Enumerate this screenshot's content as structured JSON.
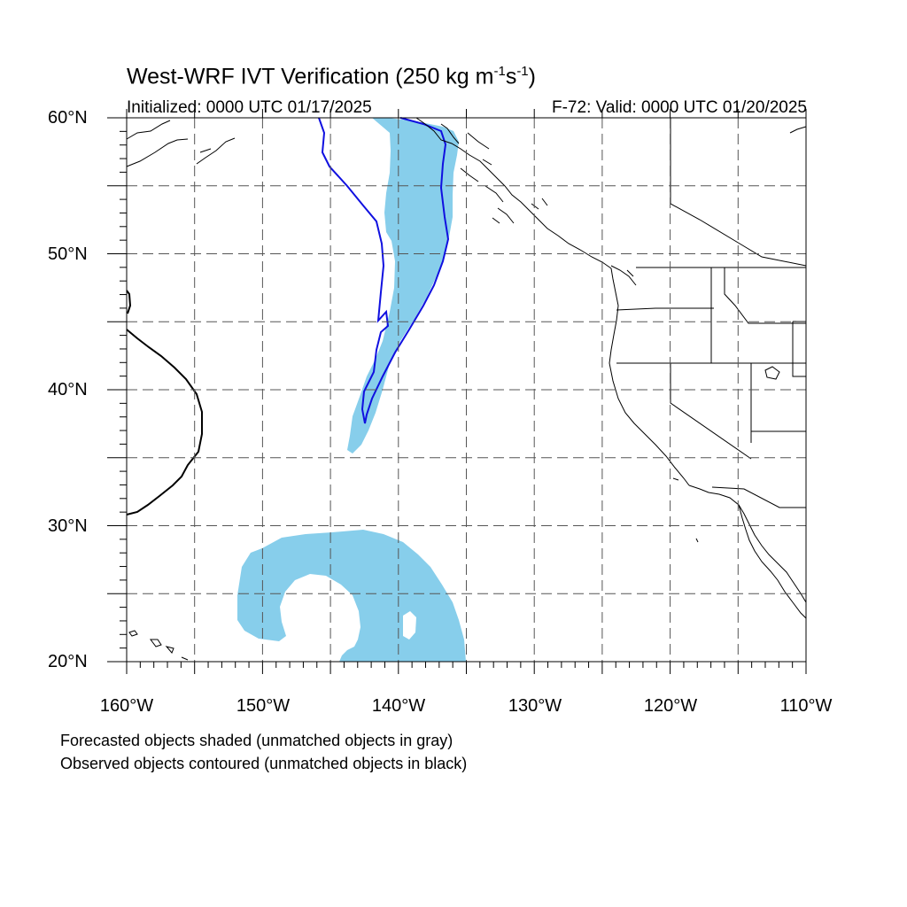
{
  "title": {
    "prefix": "West-WRF IVT Verification (250 kg m",
    "exp1": "-1",
    "middle": "s",
    "exp2": "-1",
    "suffix": ")"
  },
  "initialized": "Initialized: 0000 UTC 01/17/2025",
  "valid": "F-72: Valid: 0000 UTC 01/20/2025",
  "map": {
    "lon_range": [
      -160,
      -110
    ],
    "lat_range": [
      20,
      60
    ],
    "projection": "cylindrical equidistant",
    "grid": "dashed, every 5 degrees",
    "lat_labels": [
      "60°N",
      "50°N",
      "40°N",
      "30°N",
      "20°N"
    ],
    "lon_labels": [
      "160°W",
      "150°W",
      "140°W",
      "130°W",
      "120°W",
      "110°W"
    ]
  },
  "colors": {
    "forecast_matched_fill": "#87ceeb",
    "observed_matched_contour": "#1010e0",
    "observed_unmatched_contour": "#000000",
    "coastline": "#000000",
    "grid": "#555555"
  },
  "legend": {
    "line1": "Forecasted objects shaded (unmatched objects in gray)",
    "line2": "Observed objects contoured (unmatched objects in black)"
  }
}
